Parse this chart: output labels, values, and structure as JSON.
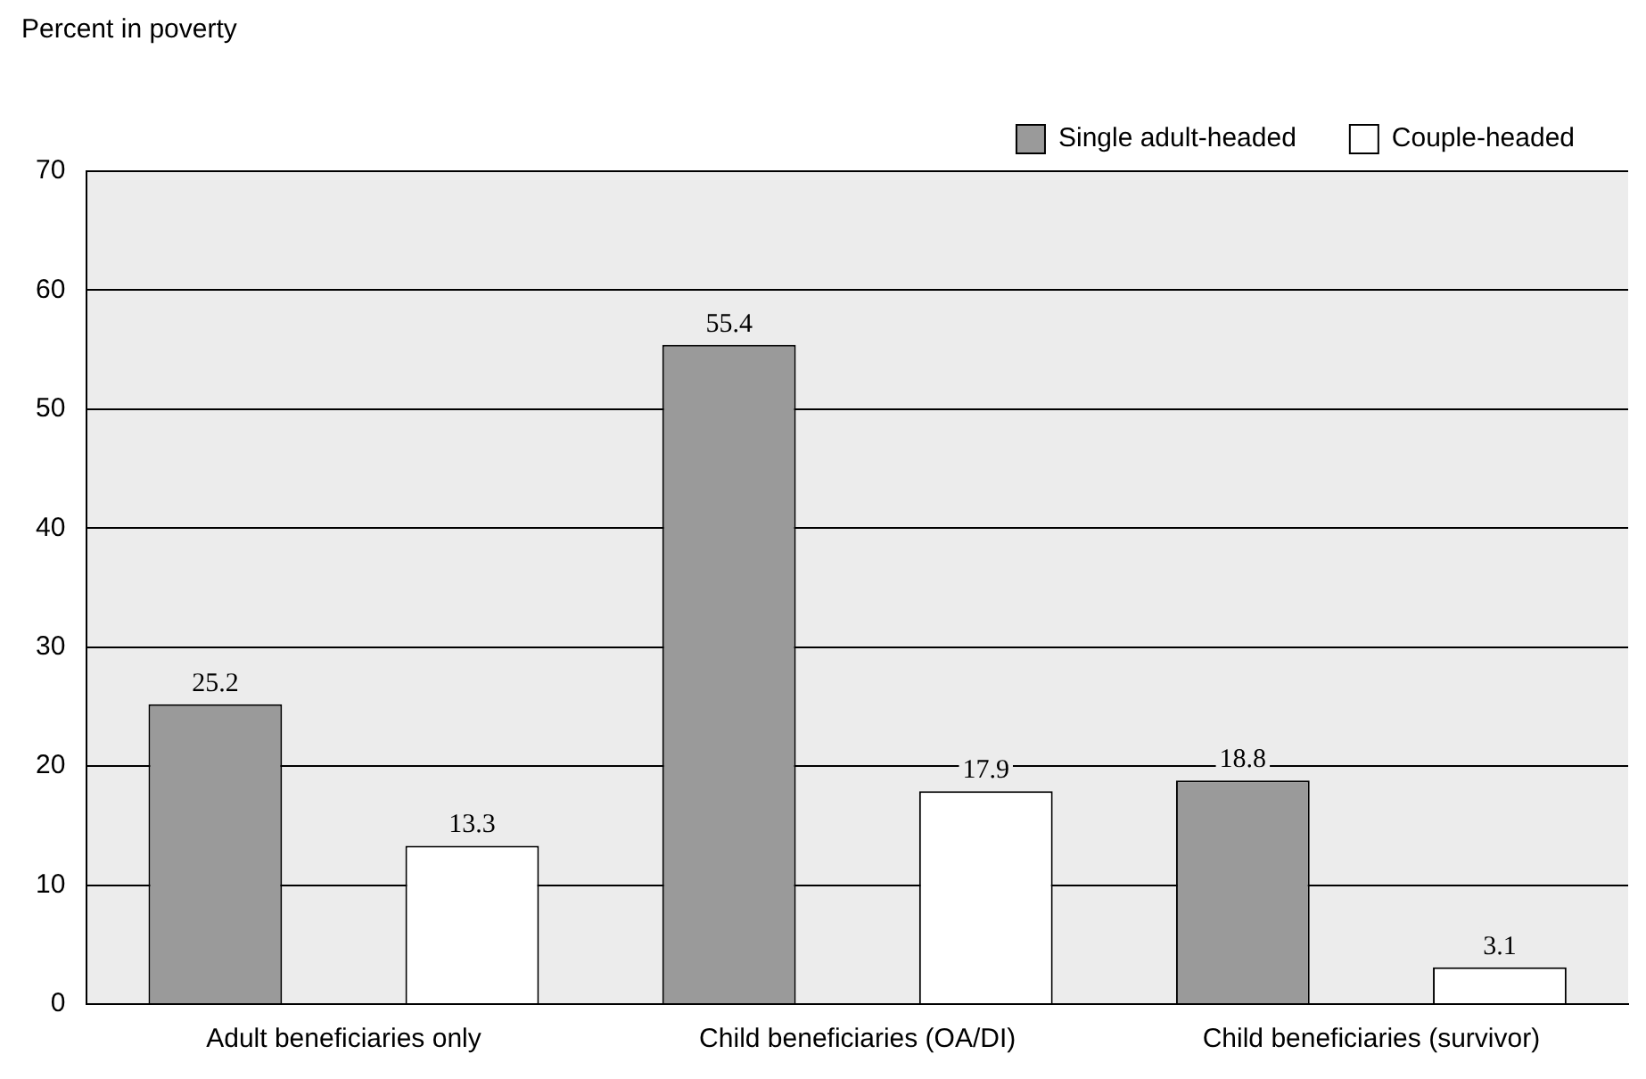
{
  "chart_data": {
    "type": "bar",
    "ylabel": "Percent in poverty",
    "categories": [
      "Adult beneficiaries only",
      "Child beneficiaries (OA/DI)",
      "Child beneficiaries (survivor)"
    ],
    "series": [
      {
        "name": "Single adult-headed",
        "color": "#9a9a9a",
        "values": [
          25.2,
          55.4,
          18.8
        ]
      },
      {
        "name": "Couple-headed",
        "color": "#ffffff",
        "values": [
          13.3,
          17.9,
          3.1
        ]
      }
    ],
    "ylim": [
      0,
      70
    ],
    "yticks": [
      0,
      10,
      20,
      30,
      40,
      50,
      60,
      70
    ],
    "grid": "y",
    "legend": "top right",
    "data_labels": true
  }
}
